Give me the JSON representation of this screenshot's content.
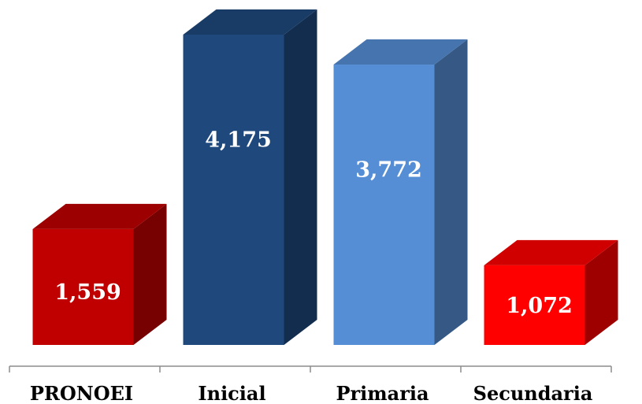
{
  "chart_data": {
    "type": "bar",
    "style": "3d-column",
    "categories": [
      "PRONOEI",
      "Inicial",
      "Primaria",
      "Secundaria"
    ],
    "values": [
      1559,
      4175,
      3772,
      1072
    ],
    "value_labels": [
      "1,559",
      "4,175",
      "3,772",
      "1,072"
    ],
    "colors": [
      "#c00000",
      "#1f497d",
      "#558ed5",
      "#ff0000"
    ],
    "title": "",
    "xlabel": "",
    "ylabel": "",
    "ylim": [
      0,
      4175
    ],
    "grid": false,
    "legend": "none"
  }
}
